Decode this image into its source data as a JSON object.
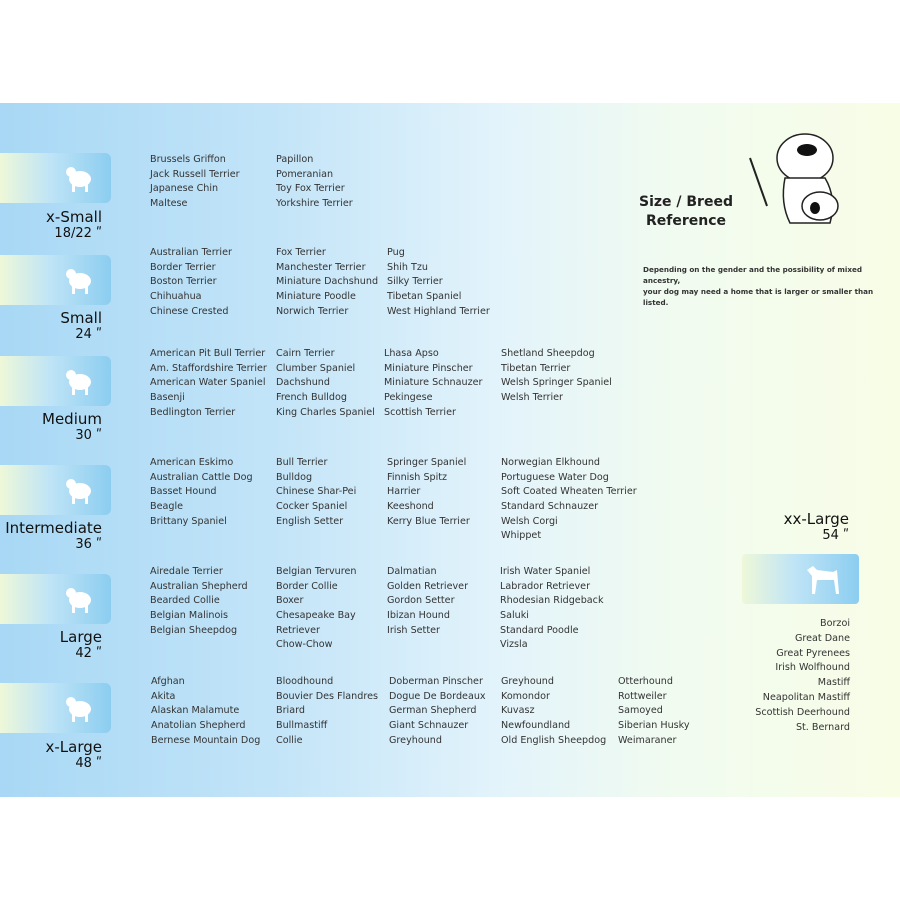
{
  "title": "Size / Breed Reference",
  "note": [
    "Depending on the gender and the possibility of mixed ancestry,",
    "your dog may need  a home that is larger or smaller than listed."
  ],
  "colors": {
    "tab_blue": "#8ccdf0",
    "background_left": "#a8d8f5",
    "background_right": "#f8fde6"
  },
  "sizes": [
    {
      "name": "x-Small",
      "dim": "18/22 ʺ",
      "icon": "papillon-silhouette-icon",
      "columns": [
        [
          "Brussels Griffon",
          "Jack Russell Terrier",
          "Japanese Chin",
          "Maltese"
        ],
        [
          "Papillon",
          "Pomeranian",
          "Toy Fox Terrier",
          "Yorkshire Terrier"
        ]
      ]
    },
    {
      "name": "Small",
      "dim": "24 ʺ",
      "icon": "small-dog-silhouette-icon",
      "columns": [
        [
          "Australian Terrier",
          "Border Terrier",
          "Boston Terrier",
          "Chihuahua",
          "Chinese Crested"
        ],
        [
          "Fox Terrier",
          "Manchester Terrier",
          "Miniature Dachshund",
          "Miniature Poodle",
          "Norwich Terrier"
        ],
        [
          "Pug",
          "Shih Tzu",
          "Silky Terrier",
          "Tibetan Spaniel",
          "West Highland Terrier"
        ]
      ]
    },
    {
      "name": "Medium",
      "dim": "30 ʺ",
      "icon": "terrier-silhouette-icon",
      "columns": [
        [
          "American Pit Bull Terrier",
          "Am. Staffordshire Terrier",
          "American Water Spaniel",
          "Basenji",
          "Bedlington Terrier"
        ],
        [
          "Cairn Terrier",
          "Clumber Spaniel",
          "Dachshund",
          "French Bulldog",
          "King Charles Spaniel"
        ],
        [
          "Lhasa Apso",
          "Miniature Pinscher",
          "Miniature Schnauzer",
          "Pekingese",
          "Scottish Terrier"
        ],
        [
          "Shetland Sheepdog",
          "Tibetan Terrier",
          "Welsh Springer Spaniel",
          "Welsh Terrier"
        ]
      ]
    },
    {
      "name": "Intermediate",
      "dim": "36 ʺ",
      "icon": "spaniel-silhouette-icon",
      "columns": [
        [
          "American Eskimo",
          "Australian Cattle Dog",
          "Basset Hound",
          "Beagle",
          "Brittany Spaniel"
        ],
        [
          "Bull Terrier",
          "Bulldog",
          "Chinese Shar-Pei",
          "Cocker Spaniel",
          "English Setter"
        ],
        [
          "Springer Spaniel",
          "Finnish Spitz",
          "Harrier",
          "Keeshond",
          "Kerry Blue Terrier"
        ],
        [
          "Norwegian Elkhound",
          "Portuguese Water Dog",
          "Soft Coated Wheaten Terrier",
          "Standard Schnauzer",
          "Welsh Corgi",
          "Whippet"
        ]
      ]
    },
    {
      "name": "Large",
      "dim": "42 ʺ",
      "icon": "retriever-silhouette-icon",
      "columns": [
        [
          "Airedale Terrier",
          "Australian Shepherd",
          "Bearded Collie",
          "Belgian Malinois",
          "Belgian Sheepdog"
        ],
        [
          "Belgian Tervuren",
          "Border Collie",
          "Boxer",
          "Chesapeake Bay",
          "Retriever",
          "Chow-Chow"
        ],
        [
          "Dalmatian",
          "Golden Retriever",
          "Gordon Setter",
          "Ibizan Hound",
          "Irish Setter"
        ],
        [
          "Irish Water Spaniel",
          "Labrador Retriever",
          "Rhodesian Ridgeback",
          "Saluki",
          "Standard Poodle",
          "Vizsla"
        ]
      ]
    },
    {
      "name": "x-Large",
      "dim": "48 ʺ",
      "icon": "husky-silhouette-icon",
      "columns": [
        [
          "Afghan",
          "Akita",
          "Alaskan Malamute",
          "Anatolian Shepherd",
          "Bernese Mountain Dog"
        ],
        [
          "Bloodhound",
          "Bouvier Des Flandres",
          "Briard",
          "Bullmastiff",
          "Collie"
        ],
        [
          "Doberman Pinscher",
          "Dogue De Bordeaux",
          "German Shepherd",
          "Giant Schnauzer",
          "Greyhound"
        ],
        [
          "Greyhound",
          "Komondor",
          "Kuvasz",
          "Newfoundland",
          "Old English Sheepdog"
        ],
        [
          "Otterhound",
          "Rottweiler",
          "Samoyed",
          "Siberian Husky",
          "Weimaraner"
        ]
      ]
    }
  ],
  "xx_large": {
    "name": "xx-Large",
    "dim": "54 ʺ",
    "icon": "great-dane-silhouette-icon",
    "breeds": [
      "Borzoi",
      "Great Dane",
      "Great Pyrenees",
      "Irish Wolfhound",
      "Mastiff",
      "Neapolitan Mastiff",
      "Scottish Deerhound",
      "St. Bernard"
    ]
  }
}
